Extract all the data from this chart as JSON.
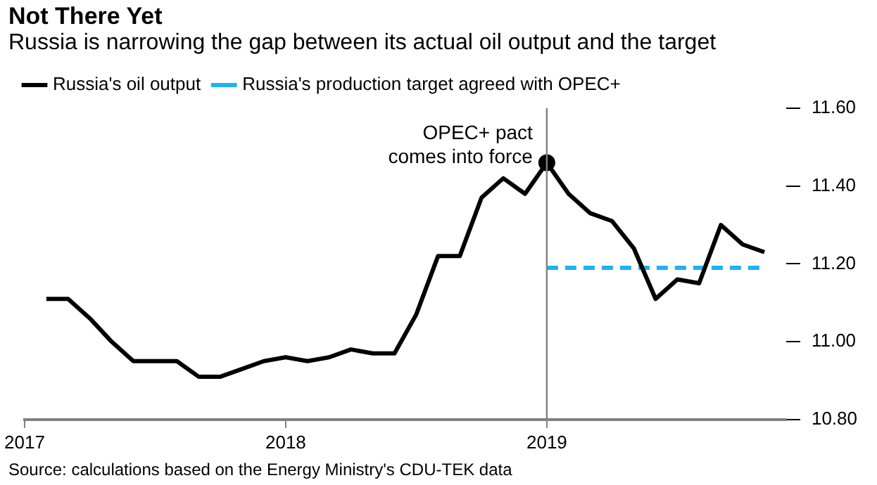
{
  "chart_data": {
    "type": "line",
    "title": "Not There Yet",
    "subtitle": "Russia is narrowing the gap between its actual oil output and the target",
    "x": [
      "2017-02",
      "2017-03",
      "2017-04",
      "2017-05",
      "2017-06",
      "2017-07",
      "2017-08",
      "2017-09",
      "2017-10",
      "2017-11",
      "2017-12",
      "2018-01",
      "2018-02",
      "2018-03",
      "2018-04",
      "2018-05",
      "2018-06",
      "2018-07",
      "2018-08",
      "2018-09",
      "2018-10",
      "2018-11",
      "2018-12",
      "2019-01",
      "2019-02",
      "2019-03",
      "2019-04",
      "2019-05",
      "2019-06",
      "2019-07",
      "2019-08",
      "2019-09",
      "2019-10",
      "2019-11"
    ],
    "series": [
      {
        "name": "Russia's oil output",
        "color": "#000000",
        "values": [
          11.11,
          11.11,
          11.06,
          11.0,
          10.95,
          10.95,
          10.95,
          10.91,
          10.91,
          10.93,
          10.95,
          10.96,
          10.95,
          10.96,
          10.98,
          10.97,
          10.97,
          11.07,
          11.22,
          11.22,
          11.37,
          11.42,
          11.38,
          11.46,
          11.38,
          11.33,
          11.31,
          11.24,
          11.11,
          11.16,
          11.15,
          11.3,
          11.25,
          11.23
        ]
      },
      {
        "name": "Russia's production target agreed with OPEC+",
        "color": "#1fb1f5",
        "line_style": "dashed",
        "x": [
          "2019-01",
          "2019-11"
        ],
        "values": [
          11.19,
          11.19
        ]
      }
    ],
    "xlim": [
      "2017-01",
      "2019-12"
    ],
    "xticks": [
      "2017",
      "2018",
      "2019"
    ],
    "ylim": [
      10.8,
      11.6
    ],
    "yticks": [
      {
        "value": 10.8,
        "label": "10.80"
      },
      {
        "value": 11.0,
        "label": "11.00"
      },
      {
        "value": 11.2,
        "label": "11.20"
      },
      {
        "value": 11.4,
        "label": "11.40"
      },
      {
        "value": 11.6,
        "label": "11.60"
      }
    ],
    "grid": false,
    "legend": "top left",
    "marker": "none",
    "line_style": "solid",
    "ref_lines": [
      {
        "axis": "x",
        "value": "2019-01",
        "label": "OPEC+ pact\ncomes into force",
        "color": "#808080"
      }
    ],
    "annotations": [
      "Source: calculations based on the Energy Ministry's CDU-TEK data"
    ]
  }
}
